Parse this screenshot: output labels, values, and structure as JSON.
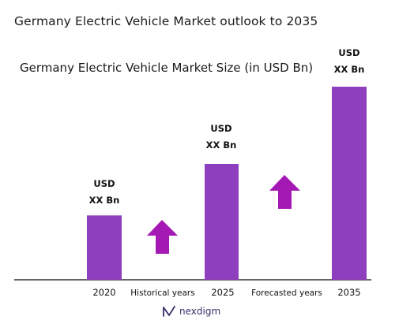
{
  "page": {
    "title": "Germany Electric Vehicle Market outlook to 2035"
  },
  "brand": {
    "logo_text": "nexdigm",
    "logo_icon": "nexdigm-logo-icon"
  },
  "colors": {
    "bar": "#8e3fbe",
    "arrow": "#a418b4",
    "axis": "#333333"
  },
  "chart_data": {
    "type": "bar",
    "title": "Germany Electric Vehicle Market Size (in USD Bn)",
    "categories": [
      "2020",
      "2025",
      "2035"
    ],
    "values": [
      1,
      1.8,
      3
    ],
    "value_note": "relative bar heights; values not printed (shown as USD XX Bn)",
    "data_labels": [
      [
        "USD",
        "XX Bn"
      ],
      [
        "USD",
        "XX Bn"
      ],
      [
        "USD",
        "XX Bn"
      ]
    ],
    "periods": [
      {
        "label": "Historical years",
        "arrow": "up-arrow-icon"
      },
      {
        "label": "Forecasted years",
        "arrow": "up-arrow-icon"
      }
    ],
    "grid": false,
    "legend": "none"
  }
}
